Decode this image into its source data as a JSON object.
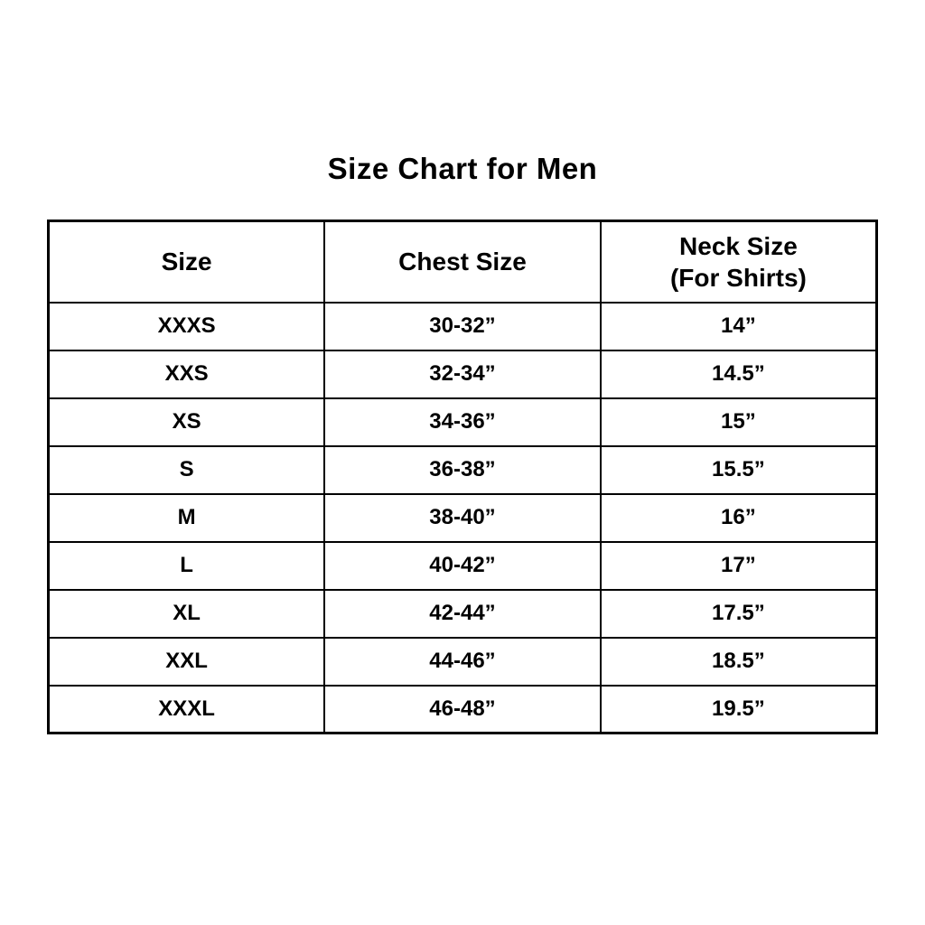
{
  "title": "Size Chart for Men",
  "table": {
    "headers": {
      "size": "Size",
      "chest": "Chest Size",
      "neck_line1": "Neck Size",
      "neck_line2": "(For Shirts)"
    },
    "rows": [
      {
        "size": "XXXS",
        "chest": "30-32”",
        "neck": "14”"
      },
      {
        "size": "XXS",
        "chest": "32-34”",
        "neck": "14.5”"
      },
      {
        "size": "XS",
        "chest": "34-36”",
        "neck": "15”"
      },
      {
        "size": "S",
        "chest": "36-38”",
        "neck": "15.5”"
      },
      {
        "size": "M",
        "chest": "38-40”",
        "neck": "16”"
      },
      {
        "size": "L",
        "chest": "40-42”",
        "neck": "17”"
      },
      {
        "size": "XL",
        "chest": "42-44”",
        "neck": "17.5”"
      },
      {
        "size": "XXL",
        "chest": "44-46”",
        "neck": "18.5”"
      },
      {
        "size": "XXXL",
        "chest": "46-48”",
        "neck": "19.5”"
      }
    ]
  }
}
